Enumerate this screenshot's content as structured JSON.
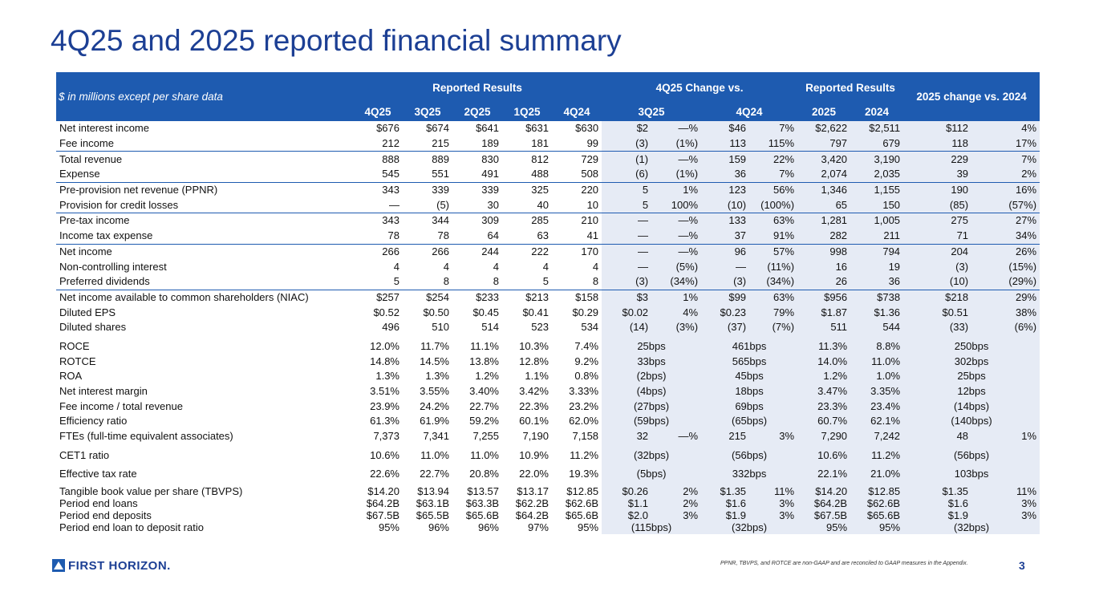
{
  "title": "4Q25 and 2025 reported financial summary",
  "table": {
    "corner_note": "$ in millions except per share data",
    "group_headers": [
      "Reported Results",
      "4Q25 Change vs.",
      "Reported Results",
      "2025 change vs. 2024"
    ],
    "columns": [
      "4Q25",
      "3Q25",
      "2Q25",
      "1Q25",
      "4Q24",
      "3Q25",
      "4Q24",
      "2025",
      "2024"
    ],
    "groups": [
      {
        "rows": [
          {
            "label": "Net interest income",
            "cells": [
              "$676",
              "$674",
              "$641",
              "$631",
              "$630",
              "$2",
              "—%",
              "$46",
              "7%",
              "$2,622",
              "$2,511",
              "$112",
              "4%"
            ]
          },
          {
            "label": "Fee income",
            "cells": [
              "212",
              "215",
              "189",
              "181",
              "99",
              "(3)",
              "(1%)",
              "113",
              "115%",
              "797",
              "679",
              "118",
              "17%"
            ]
          }
        ]
      },
      {
        "rows": [
          {
            "label": "Total revenue",
            "cells": [
              "888",
              "889",
              "830",
              "812",
              "729",
              "(1)",
              "—%",
              "159",
              "22%",
              "3,420",
              "3,190",
              "229",
              "7%"
            ]
          },
          {
            "label": "Expense",
            "cells": [
              "545",
              "551",
              "491",
              "488",
              "508",
              "(6)",
              "(1%)",
              "36",
              "7%",
              "2,074",
              "2,035",
              "39",
              "2%"
            ]
          }
        ]
      },
      {
        "rows": [
          {
            "label": "Pre-provision net revenue (PPNR)",
            "cells": [
              "343",
              "339",
              "339",
              "325",
              "220",
              "5",
              "1%",
              "123",
              "56%",
              "1,346",
              "1,155",
              "190",
              "16%"
            ]
          },
          {
            "label": "Provision for credit losses",
            "cells": [
              "—",
              "(5)",
              "30",
              "40",
              "10",
              "5",
              "100%",
              "(10)",
              "(100%)",
              "65",
              "150",
              "(85)",
              "(57%)"
            ]
          }
        ]
      },
      {
        "rows": [
          {
            "label": "Pre-tax income",
            "cells": [
              "343",
              "344",
              "309",
              "285",
              "210",
              "—",
              "—%",
              "133",
              "63%",
              "1,281",
              "1,005",
              "275",
              "27%"
            ]
          },
          {
            "label": "Income tax expense",
            "cells": [
              "78",
              "78",
              "64",
              "63",
              "41",
              "—",
              "—%",
              "37",
              "91%",
              "282",
              "211",
              "71",
              "34%"
            ]
          }
        ]
      },
      {
        "rows": [
          {
            "label": "Net income",
            "cells": [
              "266",
              "266",
              "244",
              "222",
              "170",
              "—",
              "—%",
              "96",
              "57%",
              "998",
              "794",
              "204",
              "26%"
            ]
          },
          {
            "label": "Non-controlling interest",
            "cells": [
              "4",
              "4",
              "4",
              "4",
              "4",
              "—",
              "(5%)",
              "—",
              "(11%)",
              "16",
              "19",
              "(3)",
              "(15%)"
            ]
          },
          {
            "label": "Preferred dividends",
            "cells": [
              "5",
              "8",
              "8",
              "5",
              "8",
              "(3)",
              "(34%)",
              "(3)",
              "(34%)",
              "26",
              "36",
              "(10)",
              "(29%)"
            ]
          }
        ]
      },
      {
        "rows": [
          {
            "label": "Net income available to common shareholders (NIAC)",
            "cells": [
              "$257",
              "$254",
              "$233",
              "$213",
              "$158",
              "$3",
              "1%",
              "$99",
              "63%",
              "$956",
              "$738",
              "$218",
              "29%"
            ]
          },
          {
            "label": "Diluted EPS",
            "cells": [
              "$0.52",
              "$0.50",
              "$0.45",
              "$0.41",
              "$0.29",
              "$0.02",
              "4%",
              "$0.23",
              "79%",
              "$1.87",
              "$1.36",
              "$0.51",
              "38%"
            ]
          },
          {
            "label": "Diluted shares",
            "cells": [
              "496",
              "510",
              "514",
              "523",
              "534",
              "(14)",
              "(3%)",
              "(37)",
              "(7%)",
              "511",
              "544",
              "(33)",
              "(6%)"
            ]
          }
        ]
      },
      {
        "rows": [
          {
            "label": "ROCE",
            "cells": [
              "12.0%",
              "11.7%",
              "11.1%",
              "10.3%",
              "7.4%",
              "25bps",
              "461bps",
              "11.3%",
              "8.8%",
              "250bps"
            ]
          },
          {
            "label": "ROTCE",
            "cells": [
              "14.8%",
              "14.5%",
              "13.8%",
              "12.8%",
              "9.2%",
              "33bps",
              "565bps",
              "14.0%",
              "11.0%",
              "302bps"
            ]
          },
          {
            "label": "ROA",
            "cells": [
              "1.3%",
              "1.3%",
              "1.2%",
              "1.1%",
              "0.8%",
              "(2bps)",
              "45bps",
              "1.2%",
              "1.0%",
              "25bps"
            ]
          },
          {
            "label": "Net interest margin",
            "cells": [
              "3.51%",
              "3.55%",
              "3.40%",
              "3.42%",
              "3.33%",
              "(4bps)",
              "18bps",
              "3.47%",
              "3.35%",
              "12bps"
            ]
          },
          {
            "label": "Fee income / total revenue",
            "cells": [
              "23.9%",
              "24.2%",
              "22.7%",
              "22.3%",
              "23.2%",
              "(27bps)",
              "69bps",
              "23.3%",
              "23.4%",
              "(14bps)"
            ]
          },
          {
            "label": "Efficiency ratio",
            "cells": [
              "61.3%",
              "61.9%",
              "59.2%",
              "60.1%",
              "62.0%",
              "(59bps)",
              "(65bps)",
              "60.7%",
              "62.1%",
              "(140bps)"
            ]
          },
          {
            "label": "FTEs (full-time equivalent associates)",
            "cells": [
              "7,373",
              "7,341",
              "7,255",
              "7,190",
              "7,158",
              "32",
              "—%",
              "215",
              "3%",
              "7,290",
              "7,242",
              "48",
              "1%"
            ]
          }
        ]
      },
      {
        "rows": [
          {
            "label": "CET1 ratio",
            "cells": [
              "10.6%",
              "11.0%",
              "11.0%",
              "10.9%",
              "11.2%",
              "(32bps)",
              "(56bps)",
              "10.6%",
              "11.2%",
              "(56bps)"
            ]
          }
        ]
      },
      {
        "rows": [
          {
            "label": "Effective tax rate",
            "cells": [
              "22.6%",
              "22.7%",
              "20.8%",
              "22.0%",
              "19.3%",
              "(5bps)",
              "332bps",
              "22.1%",
              "21.0%",
              "103bps"
            ]
          }
        ]
      },
      {
        "rows": [
          {
            "label": "Tangible book value per share (TBVPS)",
            "cells": [
              "$14.20",
              "$13.94",
              "$13.57",
              "$13.17",
              "$12.85",
              "$0.26",
              "2%",
              "$1.35",
              "11%",
              "$14.20",
              "$12.85",
              "$1.35",
              "11%"
            ]
          },
          {
            "label": "Period end loans",
            "cells": [
              "$64.2B",
              "$63.1B",
              "$63.3B",
              "$62.2B",
              "$62.6B",
              "$1.1",
              "2%",
              "$1.6",
              "3%",
              "$64.2B",
              "$62.6B",
              "$1.6",
              "3%"
            ]
          },
          {
            "label": "Period end deposits",
            "cells": [
              "$67.5B",
              "$65.5B",
              "$65.6B",
              "$64.2B",
              "$65.6B",
              "$2.0",
              "3%",
              "$1.9",
              "3%",
              "$67.5B",
              "$65.6B",
              "$1.9",
              "3%"
            ]
          },
          {
            "label": "Period end loan to deposit ratio",
            "cells": [
              "95%",
              "96%",
              "96%",
              "97%",
              "95%",
              "(115bps)",
              "(32bps)",
              "95%",
              "95%",
              "(32bps)"
            ]
          }
        ]
      }
    ]
  },
  "footer": {
    "logo": "FIRST HORIZON.",
    "note": "PPNR, TBVPS, and ROTCE are non-GAAP and are reconciled to GAAP measures in the Appendix.",
    "page": "3"
  }
}
